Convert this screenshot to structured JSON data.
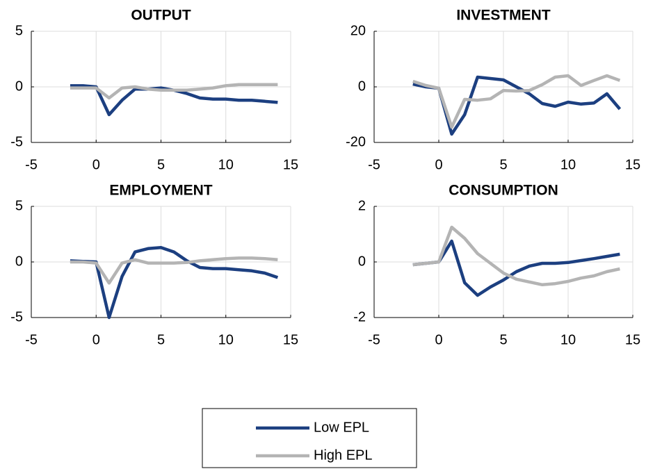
{
  "chart_data": [
    {
      "type": "line",
      "title": "OUTPUT",
      "grid": true,
      "x": [
        -2,
        -1,
        0,
        1,
        2,
        3,
        4,
        5,
        6,
        7,
        8,
        9,
        10,
        11,
        12,
        13,
        14
      ],
      "xlim": [
        -5,
        15
      ],
      "xticks": [
        -5,
        0,
        5,
        10,
        15
      ],
      "ylim": [
        -5,
        5
      ],
      "yticks": [
        -5,
        0,
        5
      ],
      "series": [
        {
          "name": "Low EPL",
          "color": "#1c3f80",
          "values": [
            0.1,
            0.1,
            0,
            -2.5,
            -1.2,
            -0.2,
            -0.2,
            -0.1,
            -0.3,
            -0.6,
            -1.0,
            -1.1,
            -1.1,
            -1.2,
            -1.2,
            -1.3,
            -1.4
          ]
        },
        {
          "name": "High EPL",
          "color": "#b4b4b4",
          "values": [
            -0.1,
            -0.1,
            -0.1,
            -1.0,
            -0.1,
            0.0,
            -0.2,
            -0.3,
            -0.3,
            -0.3,
            -0.2,
            -0.1,
            0.1,
            0.2,
            0.2,
            0.2,
            0.2
          ]
        }
      ]
    },
    {
      "type": "line",
      "title": "INVESTMENT",
      "grid": true,
      "x": [
        -2,
        -1,
        0,
        1,
        2,
        3,
        4,
        5,
        6,
        7,
        8,
        9,
        10,
        11,
        12,
        13,
        14
      ],
      "xlim": [
        -5,
        15
      ],
      "xticks": [
        -5,
        0,
        5,
        10,
        15
      ],
      "ylim": [
        -20,
        20
      ],
      "yticks": [
        -20,
        0,
        20
      ],
      "series": [
        {
          "color": "#1c3f80",
          "values": [
            1,
            0,
            -0.5,
            -17,
            -10,
            3.5,
            3,
            2.5,
            0,
            -2.5,
            -6,
            -7,
            -5.5,
            -6.2,
            -5.8,
            -2.5,
            -8
          ]
        },
        {
          "color": "#b4b4b4",
          "values": [
            2,
            0.5,
            -0.5,
            -14.5,
            -4.5,
            -4.8,
            -4.3,
            -1.3,
            -1.5,
            -1.3,
            0.8,
            3.5,
            4,
            0.5,
            2.3,
            4,
            2.3
          ]
        }
      ]
    },
    {
      "type": "line",
      "title": "EMPLOYMENT",
      "grid": true,
      "x": [
        -2,
        -1,
        0,
        1,
        2,
        3,
        4,
        5,
        6,
        7,
        8,
        9,
        10,
        11,
        12,
        13,
        14
      ],
      "xlim": [
        -5,
        15
      ],
      "xticks": [
        -5,
        0,
        5,
        10,
        15
      ],
      "ylim": [
        -5,
        5
      ],
      "yticks": [
        -5,
        0,
        5
      ],
      "series": [
        {
          "color": "#1c3f80",
          "values": [
            0.1,
            0.05,
            0,
            -5,
            -1.3,
            0.9,
            1.2,
            1.3,
            0.9,
            0.1,
            -0.5,
            -0.6,
            -0.6,
            -0.7,
            -0.8,
            -1.0,
            -1.4
          ]
        },
        {
          "color": "#b4b4b4",
          "values": [
            0,
            0,
            -0.1,
            -1.9,
            -0.1,
            0.2,
            -0.1,
            -0.1,
            -0.1,
            -0.05,
            0.1,
            0.2,
            0.3,
            0.35,
            0.35,
            0.3,
            0.2
          ]
        }
      ]
    },
    {
      "type": "line",
      "title": "CONSUMPTION",
      "grid": true,
      "x": [
        -2,
        -1,
        0,
        1,
        2,
        3,
        4,
        5,
        6,
        7,
        8,
        9,
        10,
        11,
        12,
        13,
        14
      ],
      "xlim": [
        -5,
        15
      ],
      "xticks": [
        -5,
        0,
        5,
        10,
        15
      ],
      "ylim": [
        -2,
        2
      ],
      "yticks": [
        -2,
        0,
        2
      ],
      "series": [
        {
          "color": "#1c3f80",
          "values": [
            -0.1,
            -0.05,
            0,
            0.75,
            -0.75,
            -1.2,
            -0.9,
            -0.65,
            -0.35,
            -0.15,
            -0.05,
            -0.05,
            -0.02,
            0.05,
            0.12,
            0.2,
            0.28
          ]
        },
        {
          "color": "#b4b4b4",
          "values": [
            -0.1,
            -0.05,
            0,
            1.25,
            0.85,
            0.3,
            -0.05,
            -0.4,
            -0.62,
            -0.72,
            -0.82,
            -0.78,
            -0.7,
            -0.58,
            -0.5,
            -0.35,
            -0.25
          ]
        }
      ]
    }
  ]
}
